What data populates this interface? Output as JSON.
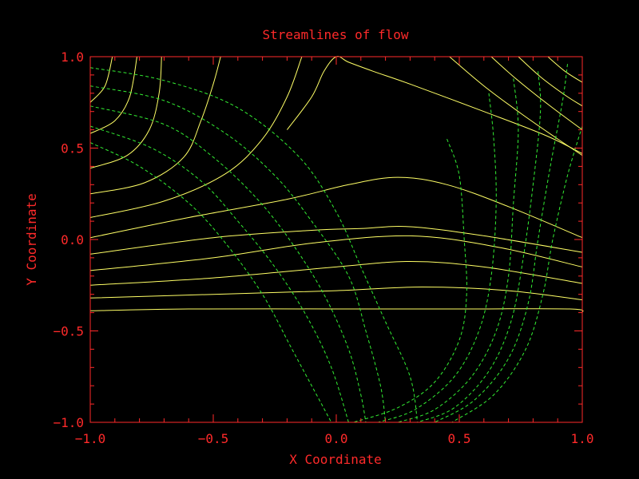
{
  "chart_data": {
    "type": "line",
    "title": "Streamlines of flow",
    "xlabel": "X Coordinate",
    "ylabel": "Y Coordinate",
    "xlim": [
      -1.0,
      1.0
    ],
    "ylim": [
      -1.0,
      1.0
    ],
    "x_ticks": [
      -1.0,
      -0.5,
      0.0,
      0.5,
      1.0
    ],
    "y_ticks": [
      -1.0,
      -0.5,
      0.0,
      0.5,
      1.0
    ],
    "x_tick_labels": [
      "−1.0",
      "−0.5",
      "0.0",
      "0.5",
      "1.0"
    ],
    "y_tick_labels": [
      "−1.0",
      "−0.5",
      "0.0",
      "0.5",
      "1.0"
    ],
    "grid": false,
    "colors": {
      "background": "#000000",
      "axes": "#ff2a2a",
      "solid_series": "#ffff66",
      "dashed_series": "#33ee33"
    },
    "series": [
      {
        "style": "solid",
        "points": [
          [
            -1.0,
            -0.39
          ],
          [
            -0.6,
            -0.38
          ],
          [
            0.0,
            -0.38
          ],
          [
            0.5,
            -0.38
          ],
          [
            0.95,
            -0.38
          ],
          [
            1.0,
            -0.4
          ]
        ]
      },
      {
        "style": "solid",
        "points": [
          [
            -1.0,
            -0.32
          ],
          [
            -0.5,
            -0.3
          ],
          [
            0.0,
            -0.28
          ],
          [
            0.35,
            -0.26
          ],
          [
            0.7,
            -0.28
          ],
          [
            1.0,
            -0.33
          ]
        ]
      },
      {
        "style": "solid",
        "points": [
          [
            -1.0,
            -0.25
          ],
          [
            -0.5,
            -0.21
          ],
          [
            0.0,
            -0.15
          ],
          [
            0.3,
            -0.12
          ],
          [
            0.6,
            -0.15
          ],
          [
            1.0,
            -0.24
          ]
        ]
      },
      {
        "style": "solid",
        "points": [
          [
            -1.0,
            -0.17
          ],
          [
            -0.5,
            -0.1
          ],
          [
            -0.1,
            -0.02
          ],
          [
            0.3,
            0.02
          ],
          [
            0.65,
            -0.04
          ],
          [
            1.0,
            -0.15
          ]
        ]
      },
      {
        "style": "solid",
        "points": [
          [
            -1.0,
            -0.08
          ],
          [
            -0.5,
            0.01
          ],
          [
            -0.1,
            0.05
          ],
          [
            0.1,
            0.06
          ],
          [
            0.3,
            0.07
          ],
          [
            0.6,
            0.02
          ],
          [
            1.0,
            -0.07
          ]
        ]
      },
      {
        "style": "solid",
        "points": [
          [
            -1.0,
            0.01
          ],
          [
            -0.6,
            0.12
          ],
          [
            -0.2,
            0.22
          ],
          [
            0.05,
            0.3
          ],
          [
            0.25,
            0.34
          ],
          [
            0.45,
            0.3
          ],
          [
            0.7,
            0.18
          ],
          [
            1.0,
            0.01
          ]
        ]
      },
      {
        "style": "solid",
        "points": [
          [
            -1.0,
            0.12
          ],
          [
            -0.7,
            0.21
          ],
          [
            -0.45,
            0.36
          ],
          [
            -0.3,
            0.55
          ],
          [
            -0.2,
            0.78
          ],
          [
            -0.14,
            1.0
          ]
        ]
      },
      {
        "style": "solid",
        "points": [
          [
            -1.0,
            0.25
          ],
          [
            -0.78,
            0.31
          ],
          [
            -0.62,
            0.45
          ],
          [
            -0.55,
            0.65
          ],
          [
            -0.5,
            0.85
          ],
          [
            -0.47,
            1.0
          ]
        ]
      },
      {
        "style": "solid",
        "points": [
          [
            -1.0,
            0.39
          ],
          [
            -0.85,
            0.46
          ],
          [
            -0.76,
            0.6
          ],
          [
            -0.72,
            0.8
          ],
          [
            -0.71,
            1.0
          ]
        ]
      },
      {
        "style": "solid",
        "points": [
          [
            -1.0,
            0.58
          ],
          [
            -0.9,
            0.65
          ],
          [
            -0.84,
            0.78
          ],
          [
            -0.81,
            1.0
          ]
        ]
      },
      {
        "style": "solid",
        "points": [
          [
            -1.0,
            0.75
          ],
          [
            -0.94,
            0.84
          ],
          [
            -0.91,
            1.0
          ]
        ]
      },
      {
        "style": "solid",
        "points": [
          [
            -0.2,
            0.6
          ],
          [
            -0.1,
            0.78
          ],
          [
            -0.05,
            0.92
          ],
          [
            0.0,
            1.0
          ],
          [
            0.05,
            0.97
          ],
          [
            0.15,
            0.92
          ],
          [
            0.3,
            0.85
          ],
          [
            0.6,
            0.7
          ],
          [
            0.85,
            0.57
          ],
          [
            1.0,
            0.47
          ]
        ]
      },
      {
        "style": "solid",
        "points": [
          [
            0.46,
            1.0
          ],
          [
            0.6,
            0.84
          ],
          [
            0.75,
            0.69
          ],
          [
            0.9,
            0.55
          ],
          [
            1.0,
            0.46
          ]
        ]
      },
      {
        "style": "solid",
        "points": [
          [
            0.63,
            1.0
          ],
          [
            0.73,
            0.88
          ],
          [
            0.86,
            0.74
          ],
          [
            1.0,
            0.6
          ]
        ]
      },
      {
        "style": "solid",
        "points": [
          [
            0.74,
            1.0
          ],
          [
            0.83,
            0.89
          ],
          [
            0.93,
            0.79
          ],
          [
            1.0,
            0.73
          ]
        ]
      },
      {
        "style": "solid",
        "points": [
          [
            0.86,
            1.0
          ],
          [
            0.93,
            0.92
          ],
          [
            1.0,
            0.86
          ]
        ]
      },
      {
        "style": "dashed",
        "points": [
          [
            -1.0,
            0.94
          ],
          [
            -0.7,
            0.87
          ],
          [
            -0.4,
            0.72
          ],
          [
            -0.15,
            0.45
          ],
          [
            0.0,
            0.15
          ],
          [
            0.1,
            -0.15
          ],
          [
            0.2,
            -0.45
          ],
          [
            0.3,
            -0.75
          ],
          [
            0.33,
            -1.0
          ]
        ]
      },
      {
        "style": "dashed",
        "points": [
          [
            -1.0,
            0.84
          ],
          [
            -0.7,
            0.76
          ],
          [
            -0.45,
            0.58
          ],
          [
            -0.25,
            0.35
          ],
          [
            -0.1,
            0.1
          ],
          [
            0.05,
            -0.2
          ],
          [
            0.12,
            -0.5
          ],
          [
            0.18,
            -0.8
          ],
          [
            0.2,
            -1.0
          ]
        ]
      },
      {
        "style": "dashed",
        "points": [
          [
            -1.0,
            0.73
          ],
          [
            -0.7,
            0.63
          ],
          [
            -0.5,
            0.45
          ],
          [
            -0.32,
            0.22
          ],
          [
            -0.18,
            -0.02
          ],
          [
            -0.05,
            -0.3
          ],
          [
            0.05,
            -0.6
          ],
          [
            0.1,
            -0.85
          ],
          [
            0.12,
            -1.0
          ]
        ]
      },
      {
        "style": "dashed",
        "points": [
          [
            -1.0,
            0.62
          ],
          [
            -0.75,
            0.5
          ],
          [
            -0.55,
            0.32
          ],
          [
            -0.4,
            0.1
          ],
          [
            -0.25,
            -0.15
          ],
          [
            -0.12,
            -0.42
          ],
          [
            -0.02,
            -0.7
          ],
          [
            0.05,
            -1.0
          ]
        ]
      },
      {
        "style": "dashed",
        "points": [
          [
            -1.0,
            0.53
          ],
          [
            -0.8,
            0.4
          ],
          [
            -0.6,
            0.2
          ],
          [
            -0.45,
            -0.02
          ],
          [
            -0.3,
            -0.3
          ],
          [
            -0.18,
            -0.6
          ],
          [
            -0.08,
            -0.85
          ],
          [
            -0.02,
            -1.0
          ]
        ]
      },
      {
        "style": "dashed",
        "points": [
          [
            0.45,
            0.55
          ],
          [
            0.5,
            0.35
          ],
          [
            0.52,
            0.0
          ],
          [
            0.53,
            -0.3
          ],
          [
            0.5,
            -0.55
          ],
          [
            0.4,
            -0.78
          ],
          [
            0.25,
            -0.92
          ],
          [
            0.07,
            -1.0
          ]
        ]
      },
      {
        "style": "dashed",
        "points": [
          [
            0.62,
            0.8
          ],
          [
            0.64,
            0.55
          ],
          [
            0.65,
            0.2
          ],
          [
            0.63,
            -0.2
          ],
          [
            0.58,
            -0.5
          ],
          [
            0.48,
            -0.75
          ],
          [
            0.32,
            -0.93
          ],
          [
            0.17,
            -1.0
          ]
        ]
      },
      {
        "style": "dashed",
        "points": [
          [
            0.72,
            0.88
          ],
          [
            0.74,
            0.6
          ],
          [
            0.72,
            0.2
          ],
          [
            0.7,
            -0.2
          ],
          [
            0.65,
            -0.5
          ],
          [
            0.55,
            -0.75
          ],
          [
            0.4,
            -0.93
          ],
          [
            0.25,
            -1.0
          ]
        ]
      },
      {
        "style": "dashed",
        "points": [
          [
            0.82,
            0.92
          ],
          [
            0.83,
            0.7
          ],
          [
            0.8,
            0.3
          ],
          [
            0.76,
            -0.1
          ],
          [
            0.71,
            -0.45
          ],
          [
            0.62,
            -0.72
          ],
          [
            0.48,
            -0.92
          ],
          [
            0.33,
            -1.0
          ]
        ]
      },
      {
        "style": "dashed",
        "points": [
          [
            0.94,
            0.96
          ],
          [
            0.92,
            0.76
          ],
          [
            0.87,
            0.4
          ],
          [
            0.82,
            0.0
          ],
          [
            0.78,
            -0.35
          ],
          [
            0.7,
            -0.65
          ],
          [
            0.56,
            -0.88
          ],
          [
            0.4,
            -1.0
          ]
        ]
      },
      {
        "style": "dashed",
        "points": [
          [
            1.0,
            0.62
          ],
          [
            0.94,
            0.35
          ],
          [
            0.88,
            0.0
          ],
          [
            0.84,
            -0.3
          ],
          [
            0.77,
            -0.6
          ],
          [
            0.64,
            -0.85
          ],
          [
            0.47,
            -1.0
          ]
        ]
      }
    ]
  }
}
